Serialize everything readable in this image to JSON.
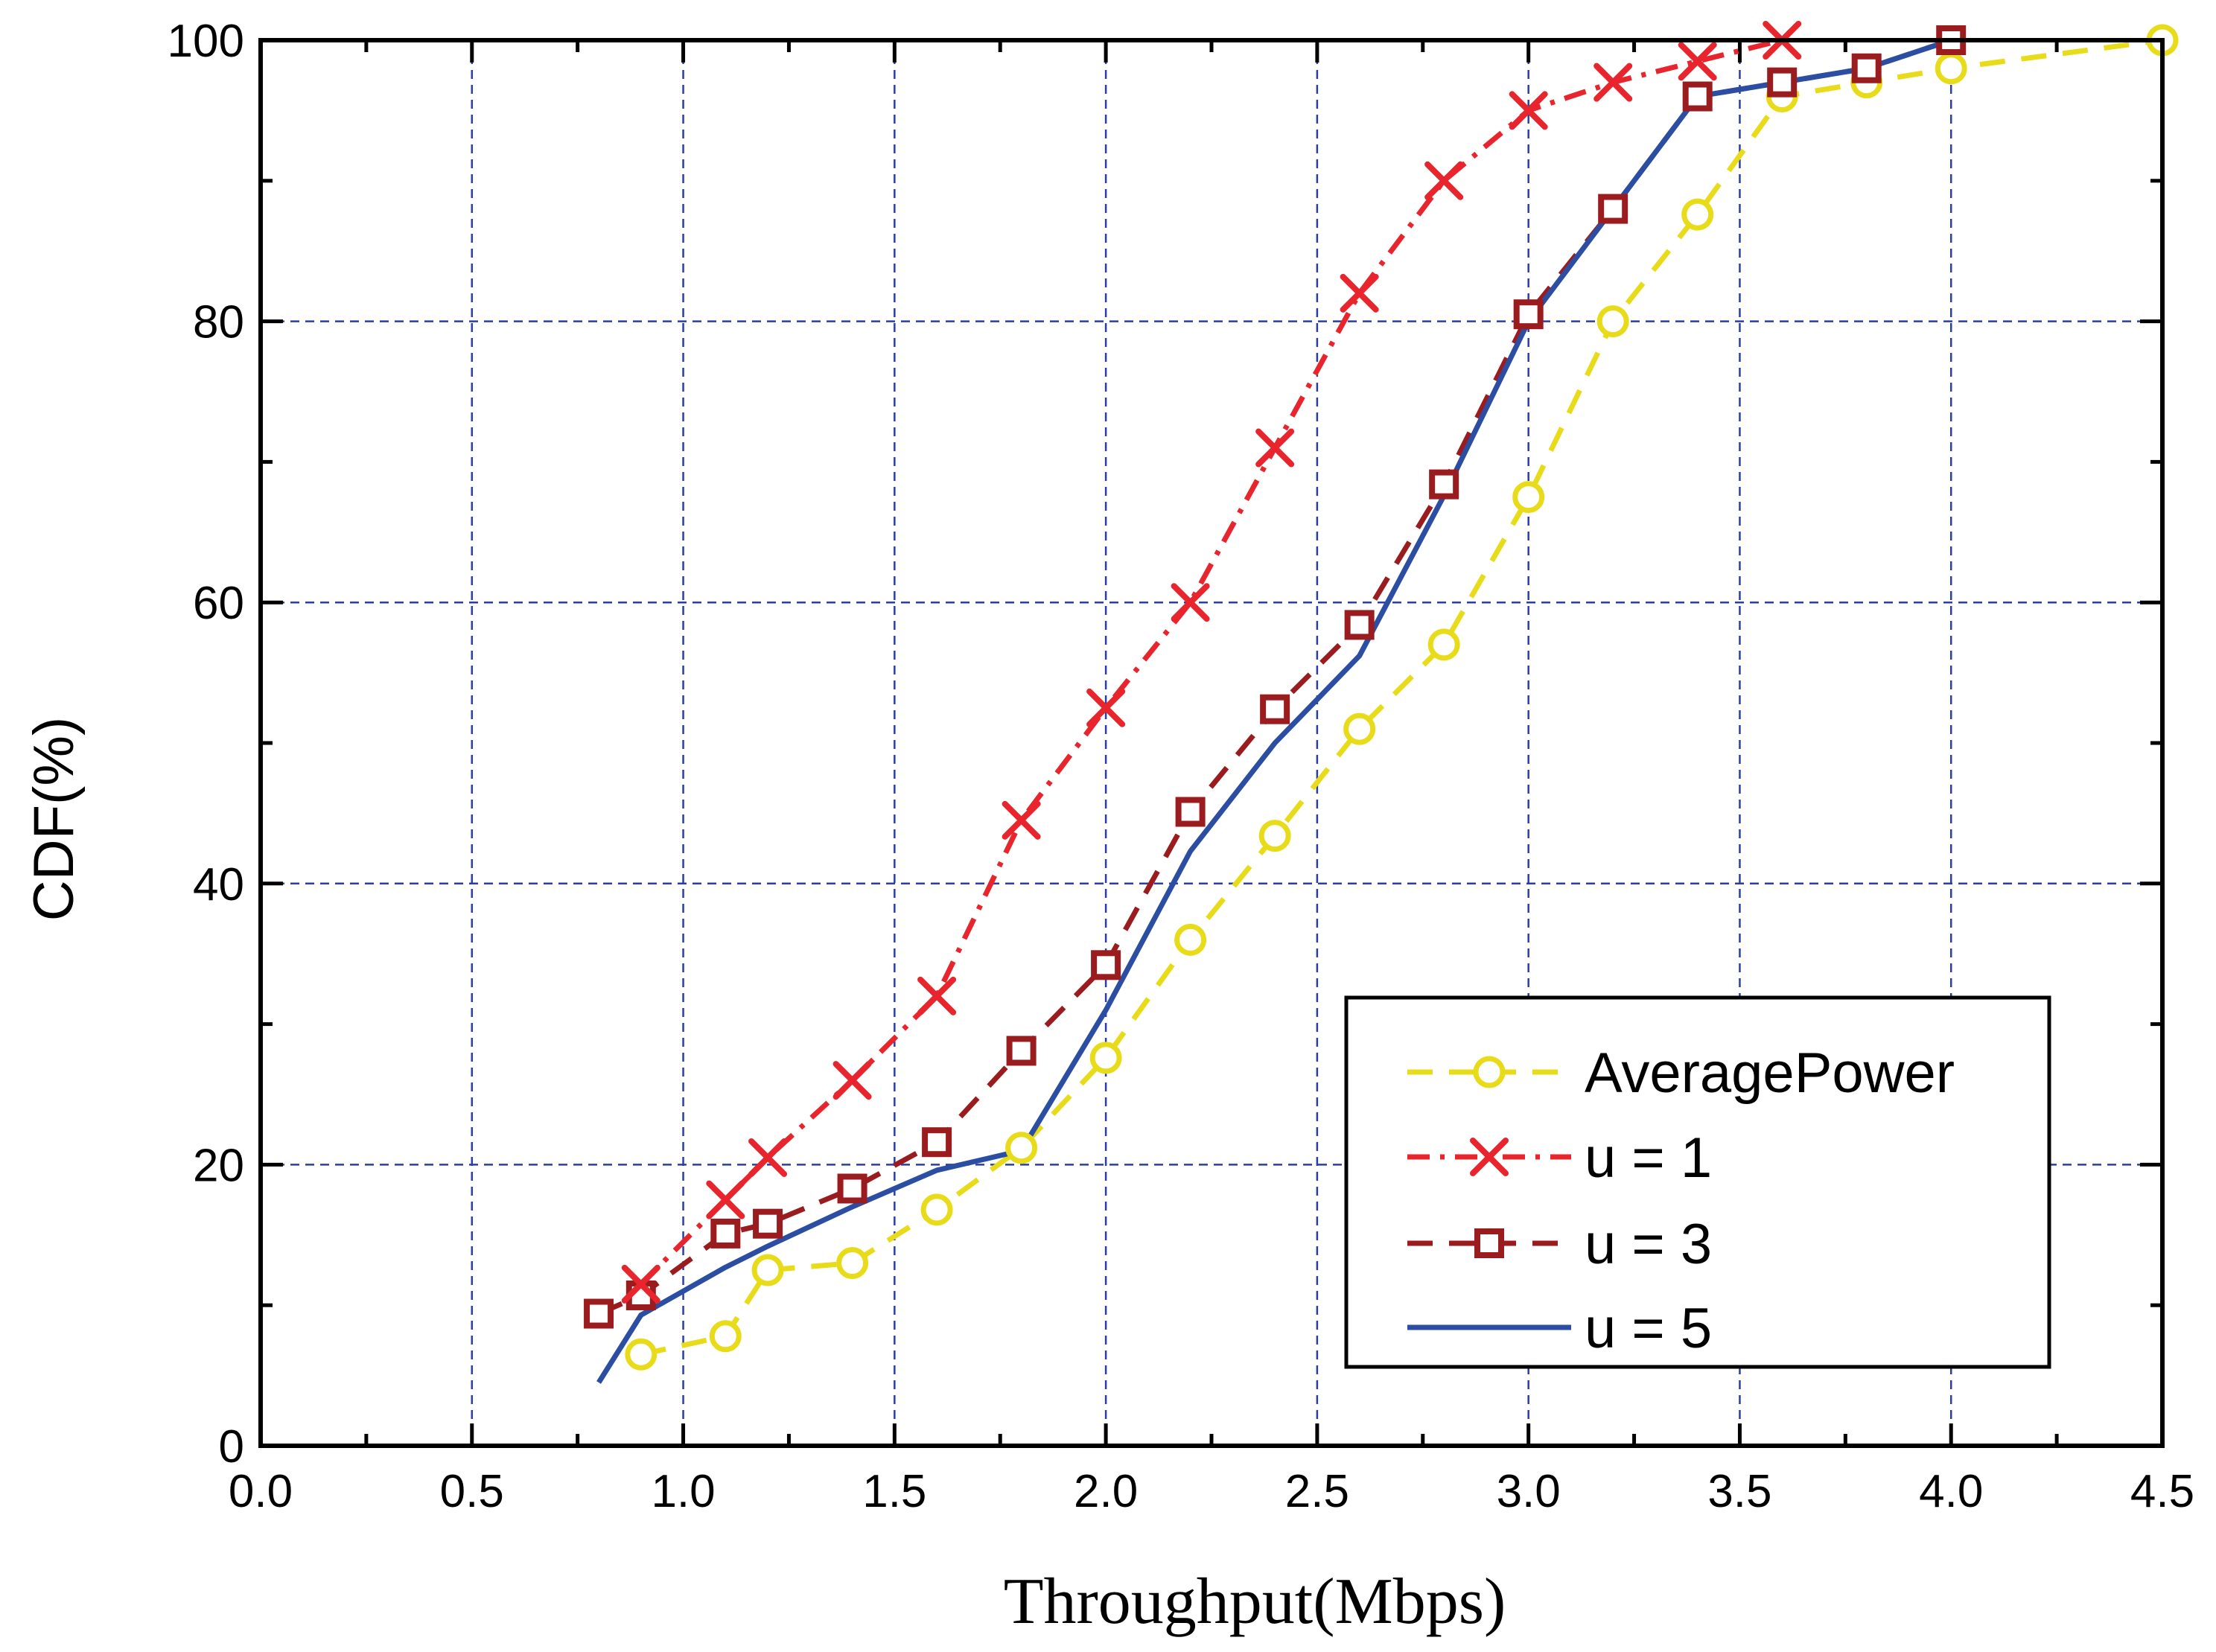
{
  "chart_data": {
    "type": "line",
    "title": "",
    "xlabel": "Throughput(Mbps)",
    "ylabel": "CDF(%)",
    "xlim": [
      0.0,
      4.5
    ],
    "ylim": [
      0,
      100
    ],
    "xticks": [
      0.0,
      0.5,
      1.0,
      1.5,
      2.0,
      2.5,
      3.0,
      3.5,
      4.0,
      4.5
    ],
    "xtick_labels": [
      "0.0",
      "0.5",
      "1.0",
      "1.5",
      "2.0",
      "2.5",
      "3.0",
      "3.5",
      "4.0",
      "4.5"
    ],
    "yticks": [
      0,
      20,
      40,
      60,
      80,
      100
    ],
    "ytick_labels": [
      "0",
      "20",
      "40",
      "60",
      "80",
      "100"
    ],
    "grid": true,
    "legend_position": "lower-right",
    "series": [
      {
        "name": "AveragePower",
        "color": "#e8dc1a",
        "line_style": "dashed",
        "marker": "circle",
        "x": [
          0.9,
          1.1,
          1.2,
          1.4,
          1.6,
          1.8,
          2.0,
          2.2,
          2.4,
          2.6,
          2.8,
          3.0,
          3.2,
          3.4,
          3.6,
          3.8,
          4.0,
          4.5
        ],
        "y": [
          6.5,
          7.8,
          12.5,
          13,
          16.8,
          21.2,
          27.6,
          36,
          43.4,
          51,
          57,
          67.5,
          80,
          87.6,
          96,
          97,
          98,
          100
        ]
      },
      {
        "name": "u = 1",
        "color": "#e8252d",
        "line_style": "dash-dot",
        "marker": "x",
        "x": [
          0.9,
          1.1,
          1.2,
          1.4,
          1.6,
          1.8,
          2.0,
          2.2,
          2.4,
          2.6,
          2.8,
          3.0,
          3.2,
          3.4,
          3.6
        ],
        "y": [
          11.5,
          17.5,
          20.5,
          26,
          32,
          44.5,
          52.5,
          60,
          71,
          82,
          90,
          95,
          97,
          98.5,
          100
        ]
      },
      {
        "name": "u = 3",
        "color": "#9b1c1f",
        "line_style": "dashed",
        "marker": "square",
        "x": [
          0.8,
          0.9,
          1.1,
          1.2,
          1.4,
          1.6,
          1.8,
          2.0,
          2.2,
          2.4,
          2.6,
          2.8,
          3.0,
          3.2,
          3.4,
          3.6,
          3.8,
          4.0
        ],
        "y": [
          9.4,
          10.7,
          15.1,
          15.8,
          18.3,
          21.6,
          28.1,
          34.2,
          45.1,
          52.4,
          58.4,
          68.4,
          80.5,
          88,
          96,
          97,
          98,
          100
        ]
      },
      {
        "name": "u = 5",
        "color": "#2b4ea3",
        "line_style": "solid",
        "marker": "none",
        "x": [
          0.8,
          0.9,
          1.1,
          1.2,
          1.4,
          1.6,
          1.8,
          2.0,
          2.2,
          2.4,
          2.6,
          2.8,
          3.0,
          3.2,
          3.4,
          3.6,
          3.8,
          4.0
        ],
        "y": [
          4.5,
          9.3,
          12.7,
          14.2,
          17,
          19.6,
          21,
          31,
          42.3,
          50,
          56.2,
          67.6,
          80,
          88,
          96,
          97,
          98,
          100
        ]
      }
    ]
  }
}
